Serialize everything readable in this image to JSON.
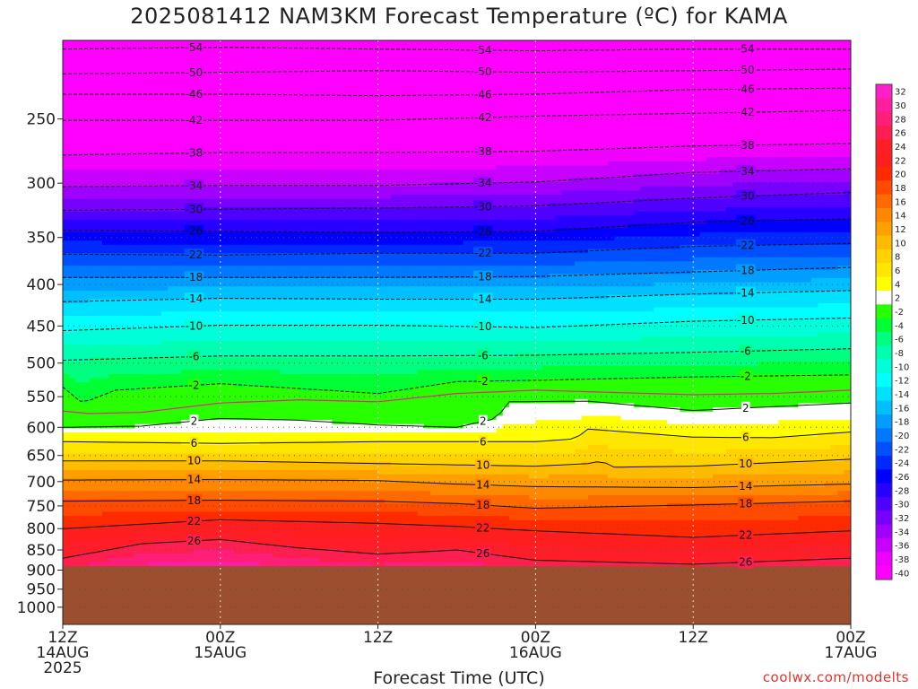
{
  "title": "2025081412 NAM3KM Forecast Temperature (ºC) for KAMA",
  "credit": "coolwx.com/modelts",
  "colors": {
    "ground": "#9b4f2e",
    "freezing_line": "#e8248a",
    "background": "#ffffff"
  },
  "chart_data": {
    "type": "heatmap",
    "title": "2025081412 NAM3KM Forecast Temperature (ºC) for KAMA",
    "xlabel": "Forecast Time (UTC)",
    "ylabel": "",
    "y_axis": {
      "scale": "log-pressure",
      "inverted": true,
      "range_hpa": [
        1050,
        200
      ],
      "ticks": [
        250,
        300,
        350,
        400,
        450,
        500,
        550,
        600,
        650,
        700,
        750,
        800,
        850,
        900,
        950,
        1000
      ]
    },
    "x_axis": {
      "range_hours": [
        0,
        60
      ],
      "ticks": [
        {
          "hour": 0,
          "lines": [
            "12Z",
            "14AUG",
            "2025"
          ]
        },
        {
          "hour": 12,
          "lines": [
            "00Z",
            "15AUG"
          ]
        },
        {
          "hour": 24,
          "lines": [
            "12Z"
          ]
        },
        {
          "hour": 36,
          "lines": [
            "00Z",
            "16AUG"
          ]
        },
        {
          "hour": 48,
          "lines": [
            "12Z"
          ]
        },
        {
          "hour": 60,
          "lines": [
            "00Z",
            "17AUG"
          ]
        }
      ]
    },
    "surface_pressure_hpa": 890,
    "grid": true,
    "colorbar": {
      "placement": "right",
      "levels": [
        32,
        30,
        28,
        26,
        24,
        22,
        20,
        18,
        16,
        14,
        12,
        10,
        8,
        6,
        4,
        2,
        -2,
        -4,
        -6,
        -8,
        -10,
        -12,
        -14,
        -16,
        -18,
        -20,
        -22,
        -24,
        -26,
        -28,
        -30,
        -32,
        -34,
        -36,
        -38,
        -40
      ],
      "colors": [
        "#ff1ec8",
        "#ff1ea0",
        "#ff1e78",
        "#ff1e50",
        "#ff1e28",
        "#ff1e1e",
        "#ff2a00",
        "#ff4a00",
        "#ff6a00",
        "#ff8800",
        "#ffa000",
        "#ffbb00",
        "#ffd200",
        "#ffe600",
        "#ffff00",
        "#ffffff",
        "#28ff00",
        "#00ff33",
        "#00ff7f",
        "#00ffb2",
        "#00ffd9",
        "#00ffff",
        "#00e0ff",
        "#00bfff",
        "#009eff",
        "#0078ff",
        "#0050ff",
        "#0028ff",
        "#0000ff",
        "#2800ff",
        "#5000ff",
        "#7800ff",
        "#a000ff",
        "#c800ff",
        "#f000ff",
        "#ff00ff"
      ]
    },
    "isotherms": [
      {
        "label": "-54",
        "points": [
          [
            0,
            205
          ],
          [
            12,
            204
          ],
          [
            24,
            205
          ],
          [
            36,
            206
          ],
          [
            48,
            205
          ],
          [
            60,
            205
          ]
        ]
      },
      {
        "label": "-50",
        "points": [
          [
            0,
            220
          ],
          [
            12,
            219
          ],
          [
            24,
            218
          ],
          [
            36,
            219
          ],
          [
            48,
            218
          ],
          [
            60,
            217
          ]
        ]
      },
      {
        "label": "-46",
        "points": [
          [
            0,
            233
          ],
          [
            12,
            233
          ],
          [
            24,
            234
          ],
          [
            36,
            233
          ],
          [
            48,
            230
          ],
          [
            60,
            229
          ]
        ]
      },
      {
        "label": "-42",
        "points": [
          [
            0,
            251
          ],
          [
            12,
            251
          ],
          [
            24,
            251
          ],
          [
            36,
            248
          ],
          [
            48,
            246
          ],
          [
            60,
            244
          ]
        ]
      },
      {
        "label": "-38",
        "points": [
          [
            0,
            277
          ],
          [
            12,
            275
          ],
          [
            24,
            275
          ],
          [
            36,
            274
          ],
          [
            48,
            270
          ],
          [
            60,
            268
          ]
        ]
      },
      {
        "label": "-34",
        "points": [
          [
            0,
            303
          ],
          [
            12,
            302
          ],
          [
            24,
            302
          ],
          [
            36,
            299
          ],
          [
            48,
            291
          ],
          [
            60,
            288
          ]
        ]
      },
      {
        "label": "-30",
        "points": [
          [
            0,
            324
          ],
          [
            12,
            323
          ],
          [
            24,
            322
          ],
          [
            36,
            320
          ],
          [
            48,
            313
          ],
          [
            60,
            308
          ]
        ]
      },
      {
        "label": "-26",
        "points": [
          [
            0,
            343
          ],
          [
            12,
            344
          ],
          [
            24,
            345
          ],
          [
            36,
            344
          ],
          [
            48,
            335
          ],
          [
            60,
            332
          ]
        ]
      },
      {
        "label": "-22",
        "points": [
          [
            0,
            367
          ],
          [
            12,
            368
          ],
          [
            24,
            366
          ],
          [
            36,
            366
          ],
          [
            48,
            359
          ],
          [
            60,
            356
          ]
        ]
      },
      {
        "label": "-18",
        "points": [
          [
            0,
            392
          ],
          [
            12,
            392
          ],
          [
            24,
            392
          ],
          [
            36,
            391
          ],
          [
            48,
            386
          ],
          [
            60,
            381
          ]
        ]
      },
      {
        "label": "-14",
        "points": [
          [
            0,
            420
          ],
          [
            12,
            416
          ],
          [
            24,
            417
          ],
          [
            36,
            417
          ],
          [
            48,
            411
          ],
          [
            60,
            407
          ]
        ]
      },
      {
        "label": "-10",
        "points": [
          [
            0,
            456
          ],
          [
            12,
            449
          ],
          [
            24,
            449
          ],
          [
            36,
            452
          ],
          [
            48,
            444
          ],
          [
            60,
            440
          ]
        ]
      },
      {
        "label": "-6",
        "points": [
          [
            0,
            496
          ],
          [
            12,
            490
          ],
          [
            24,
            490
          ],
          [
            36,
            489
          ],
          [
            48,
            485
          ],
          [
            60,
            480
          ]
        ]
      },
      {
        "label": "-2",
        "points": [
          [
            0,
            535
          ],
          [
            1.5,
            560
          ],
          [
            4,
            540
          ],
          [
            12,
            530
          ],
          [
            24,
            545
          ],
          [
            30,
            527
          ],
          [
            36,
            525
          ],
          [
            48,
            520
          ],
          [
            60,
            517
          ]
        ]
      },
      {
        "label": "2",
        "points": [
          [
            0,
            600
          ],
          [
            6,
            598
          ],
          [
            12,
            585
          ],
          [
            18,
            588
          ],
          [
            24,
            596
          ],
          [
            30,
            600
          ],
          [
            33,
            585
          ],
          [
            34,
            558
          ],
          [
            40,
            557
          ],
          [
            48,
            572
          ],
          [
            60,
            560
          ]
        ]
      },
      {
        "label": "6",
        "points": [
          [
            0,
            625
          ],
          [
            12,
            628
          ],
          [
            24,
            625
          ],
          [
            36,
            625
          ],
          [
            39,
            620
          ],
          [
            40,
            603
          ],
          [
            48,
            617
          ],
          [
            54,
            618
          ],
          [
            60,
            608
          ]
        ]
      },
      {
        "label": "10",
        "points": [
          [
            0,
            660
          ],
          [
            12,
            660
          ],
          [
            24,
            665
          ],
          [
            36,
            670
          ],
          [
            40,
            665
          ],
          [
            41,
            660
          ],
          [
            42,
            672
          ],
          [
            48,
            670
          ],
          [
            60,
            657
          ]
        ]
      },
      {
        "label": "14",
        "points": [
          [
            0,
            697
          ],
          [
            12,
            696
          ],
          [
            24,
            698
          ],
          [
            30,
            705
          ],
          [
            36,
            710
          ],
          [
            48,
            712
          ],
          [
            60,
            705
          ]
        ]
      },
      {
        "label": "18",
        "points": [
          [
            0,
            740
          ],
          [
            12,
            738
          ],
          [
            24,
            740
          ],
          [
            30,
            745
          ],
          [
            36,
            755
          ],
          [
            48,
            748
          ],
          [
            60,
            740
          ]
        ]
      },
      {
        "label": "22",
        "points": [
          [
            0,
            800
          ],
          [
            12,
            780
          ],
          [
            24,
            788
          ],
          [
            30,
            795
          ],
          [
            36,
            805
          ],
          [
            48,
            820
          ],
          [
            60,
            805
          ]
        ]
      },
      {
        "label": "26",
        "points": [
          [
            0,
            870
          ],
          [
            6,
            835
          ],
          [
            12,
            825
          ],
          [
            18,
            845
          ],
          [
            24,
            860
          ],
          [
            30,
            850
          ],
          [
            36,
            875
          ],
          [
            48,
            885
          ],
          [
            60,
            870
          ]
        ]
      }
    ],
    "freezing_line_points": [
      [
        0,
        573
      ],
      [
        2,
        577
      ],
      [
        6,
        575
      ],
      [
        12,
        560
      ],
      [
        18,
        555
      ],
      [
        24,
        558
      ],
      [
        30,
        545
      ],
      [
        36,
        540
      ],
      [
        48,
        547
      ],
      [
        54,
        545
      ],
      [
        60,
        540
      ]
    ]
  }
}
